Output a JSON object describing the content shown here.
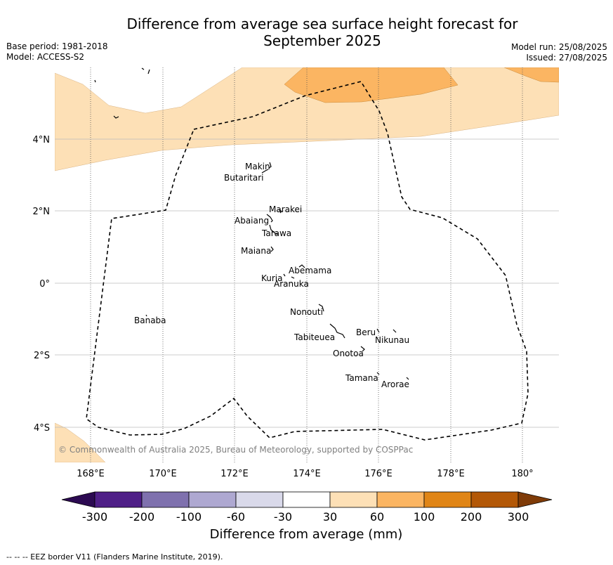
{
  "title_line1": "Difference from average sea surface height forecast for",
  "title_line2": "September 2025",
  "base_period": "Base period: 1981-2018",
  "model": "Model: ACCESS-S2",
  "model_run": "Model run: 25/08/2025",
  "issued": "Issued: 27/08/2025",
  "copyright": "© Commonwealth of Australia 2025, Bureau of Meteorology, supported by COSPPac",
  "lon_labels": [
    "168°E",
    "170°E",
    "172°E",
    "174°E",
    "176°E",
    "178°E",
    "180°"
  ],
  "lat_labels": [
    "4°N",
    "2°N",
    "0°",
    "2°S",
    "4°S"
  ],
  "islands": {
    "makin": "Makin",
    "butaritari": "Butaritari",
    "marakei": "Marakei",
    "abaiang": "Abaiang",
    "tarawa": "Tarawa",
    "maiana": "Maiana",
    "abemama": "Abemama",
    "kuria": "Kuria",
    "aranuka": "Aranuka",
    "banaba": "Banaba",
    "nonouti": "Nonouti",
    "beru": "Beru",
    "tabiteuea": "Tabiteuea",
    "nikunau": "Nikunau",
    "onotoa": "Onotoa",
    "tamana": "Tamana",
    "arorae": "Arorae"
  },
  "colorbar": {
    "labels": [
      "-300",
      "-200",
      "-100",
      "-60",
      "-30",
      "30",
      "60",
      "100",
      "200",
      "300"
    ],
    "colors": [
      "#4f1f87",
      "#7f71ae",
      "#aea8d1",
      "#d9d9ea",
      "#ffffff",
      "#fde0b6",
      "#fbb562",
      "#e08516",
      "#b35807"
    ],
    "under_color": "#2c0a52",
    "over_color": "#7f3b08",
    "title": "Difference from average (mm)"
  },
  "legend_text": "--  --  -- EEZ border V11 (Flanders Marine Institute, 2019).",
  "colors": {
    "light_orange": "#fde0b6",
    "orange": "#fbb562"
  }
}
